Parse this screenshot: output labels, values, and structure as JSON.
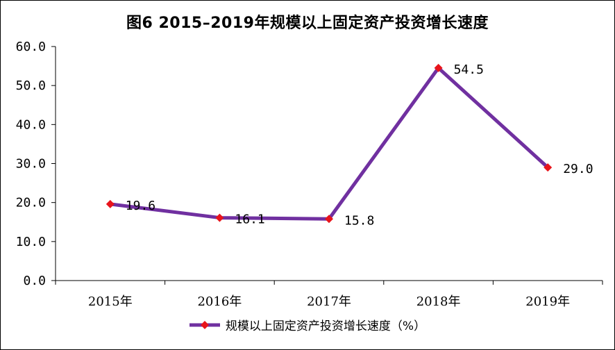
{
  "chart_data": {
    "type": "line",
    "title": "图6  2015–2019年规模以上固定资产投资增长速度",
    "categories": [
      "2015年",
      "2016年",
      "2017年",
      "2018年",
      "2019年"
    ],
    "series": [
      {
        "name": "规模以上固定资产投资增长速度（%）",
        "values": [
          19.6,
          16.1,
          15.8,
          54.5,
          29.0
        ],
        "labels": [
          "19.6",
          "16.1",
          "15.8",
          "54.5",
          "29.0"
        ]
      }
    ],
    "y_ticks": [
      "0.0",
      "10.0",
      "20.0",
      "30.0",
      "40.0",
      "50.0",
      "60.0"
    ],
    "ylim": [
      0,
      60
    ],
    "grid": false,
    "legend_position": "bottom",
    "colors": {
      "line": "#7030A0",
      "marker": "#E8141B",
      "axis": "#000000"
    }
  }
}
